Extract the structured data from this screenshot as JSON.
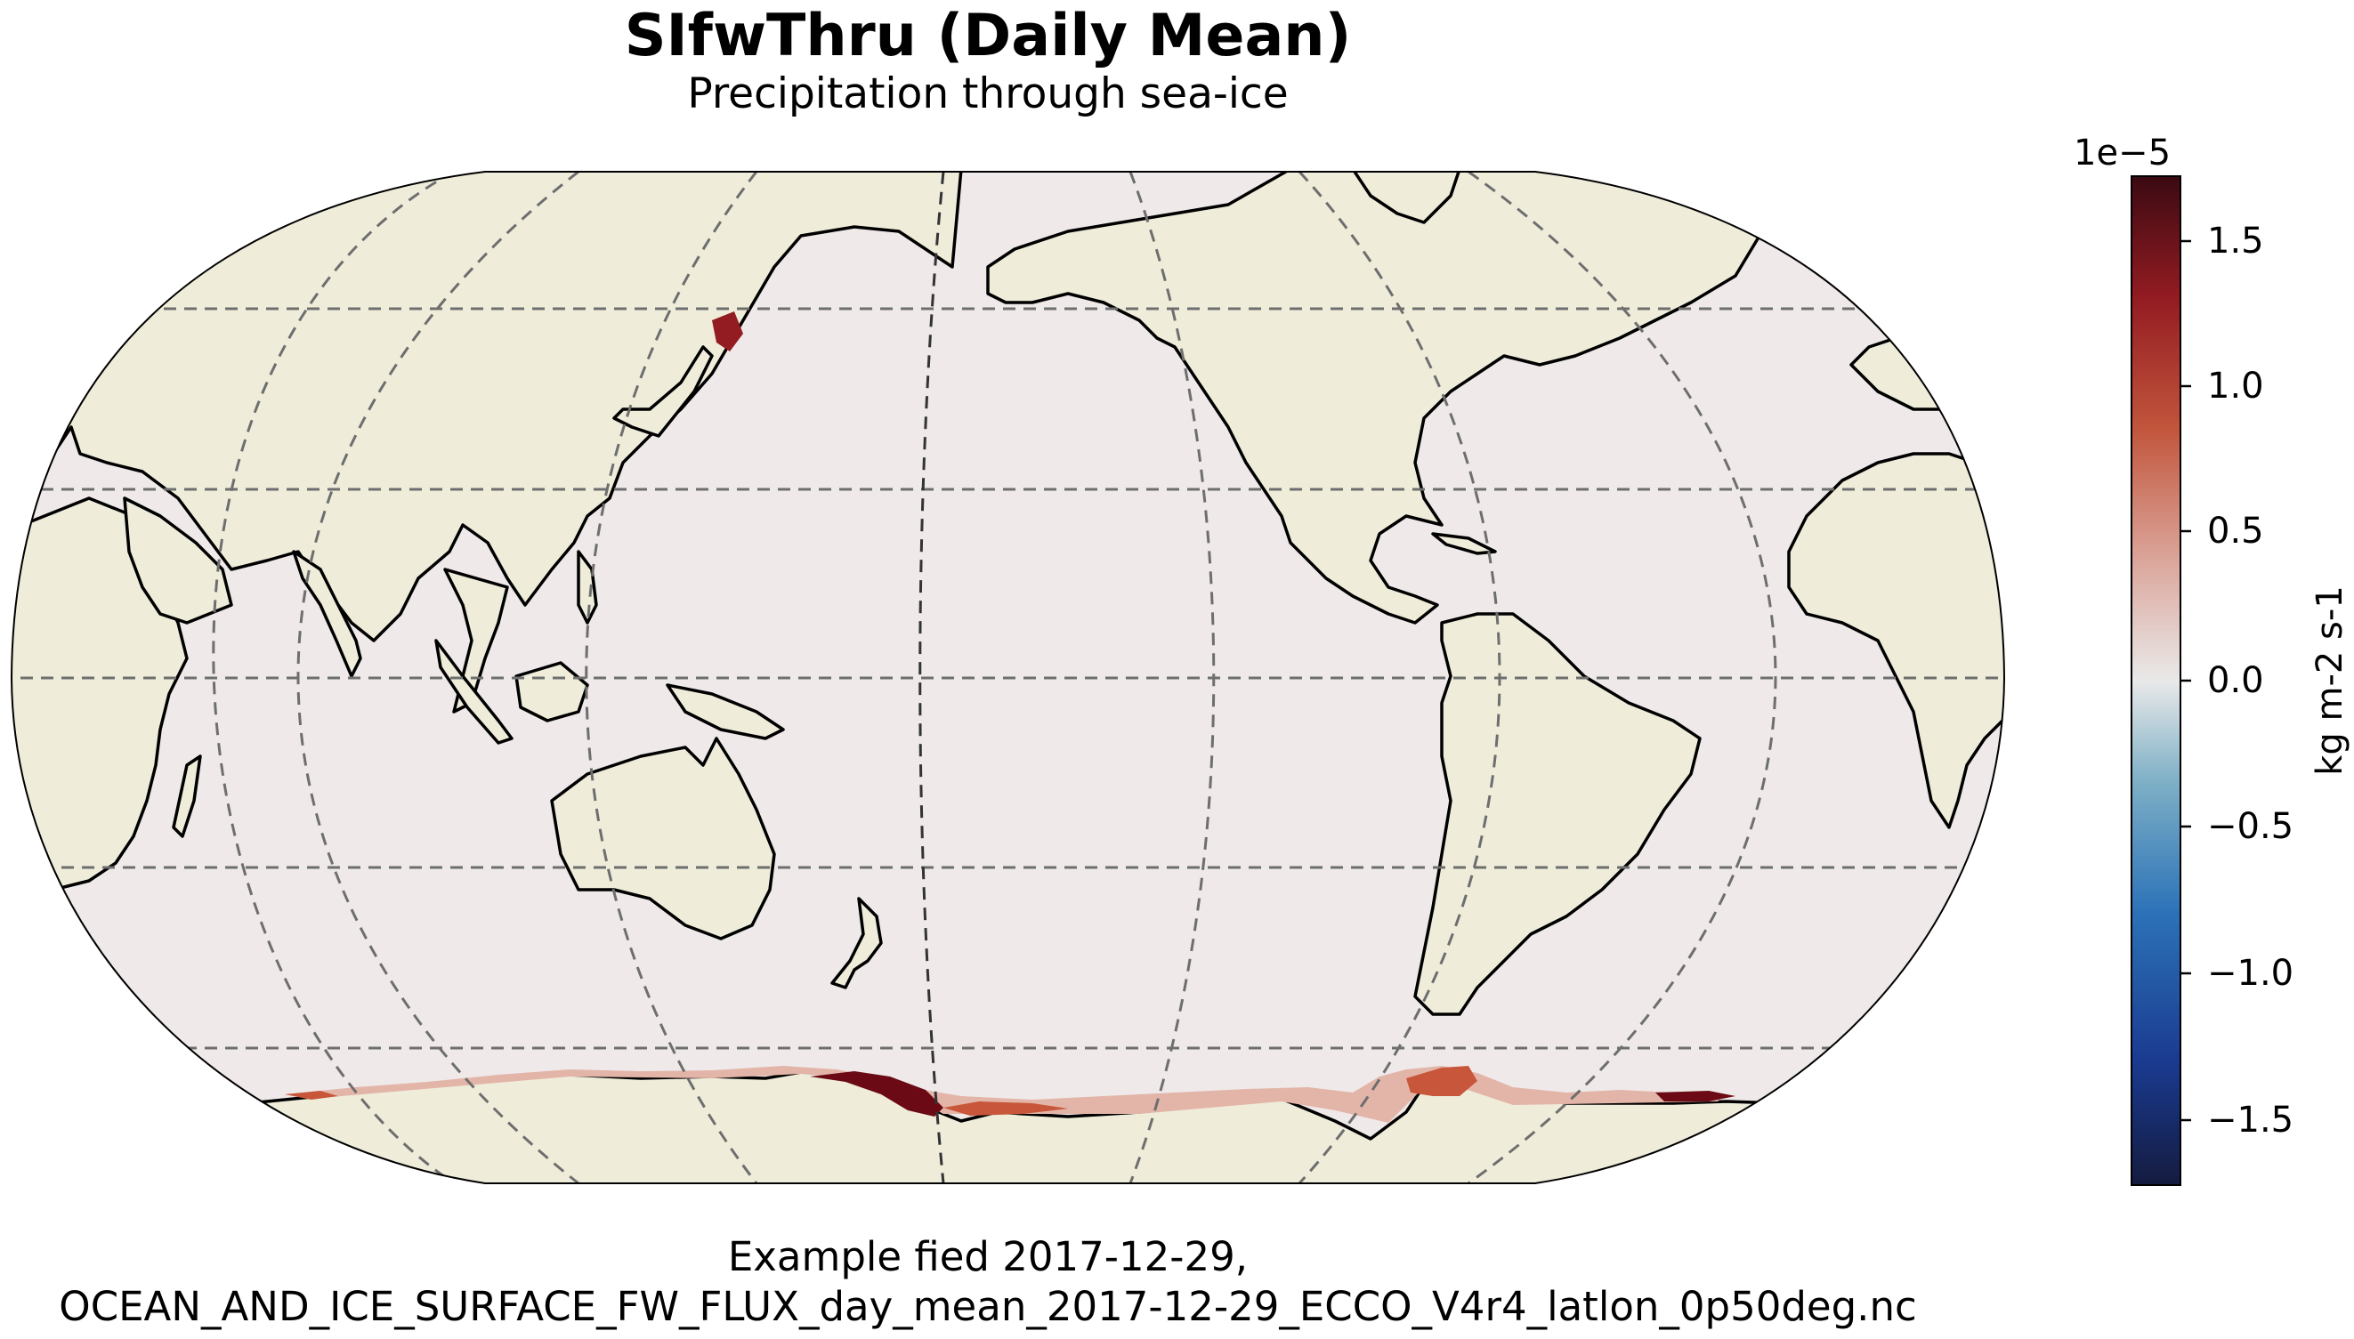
{
  "title": "SIfwThru (Daily Mean)",
  "subtitle": "Precipitation through sea-ice",
  "colors": {
    "ocean": "#efe9e9",
    "land": "#efedda",
    "coast": "#000000",
    "gridline": "#666666",
    "ice_flux_high": "#6b0a14",
    "ice_flux_mid": "#c8563a",
    "ice_flux_low": "#e3b5a8",
    "cmap": [
      "#141b3f",
      "#1a3a8f",
      "#2c72b8",
      "#7eb0c6",
      "#e9e9e9",
      "#dba59a",
      "#c2553c",
      "#931b22",
      "#3b0a12"
    ]
  },
  "colorbar": {
    "exponent": "1e−5",
    "label": "kg m-2 s-1",
    "ticks": [
      "1.5",
      "1.0",
      "0.5",
      "0.0",
      "−0.5",
      "−1.0",
      "−1.5"
    ],
    "tick_values": [
      1.5,
      1.0,
      0.5,
      0.0,
      -0.5,
      -1.0,
      -1.5
    ],
    "range": [
      -1.75,
      1.75
    ]
  },
  "caption": {
    "line1": "Example fied 2017-12-29,",
    "line2": "OCEAN_AND_ICE_SURFACE_FW_FLUX_day_mean_2017-12-29_ECCO_V4r4_latlon_0p50deg.nc"
  }
}
